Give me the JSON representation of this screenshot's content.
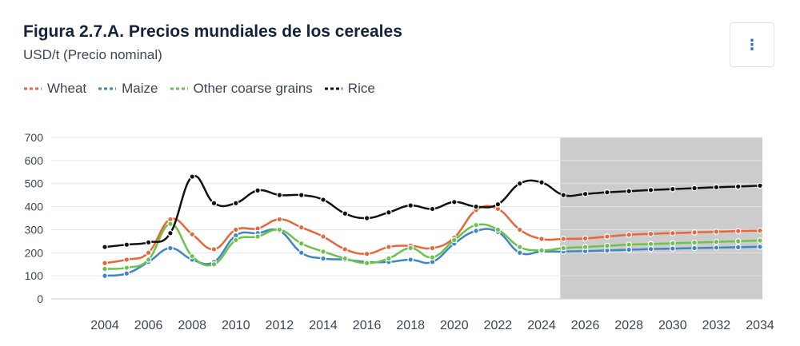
{
  "header": {
    "title": "Figura 2.7.A. Precios mundiales de los cereales",
    "subtitle": "USD/t (Precio nominal)",
    "menu_icon": "vertical-ellipsis-icon",
    "menu_glyph": "⋮"
  },
  "colors": {
    "wheat": "#e8673a",
    "maize": "#3d87c4",
    "other": "#6cc24a",
    "rice": "#111111",
    "projection_band": "#cccccc",
    "grid": "#e3e6ea"
  },
  "chart_data": {
    "type": "line",
    "x": [
      2004,
      2005,
      2006,
      2007,
      2008,
      2009,
      2010,
      2011,
      2012,
      2013,
      2014,
      2015,
      2016,
      2017,
      2018,
      2019,
      2020,
      2021,
      2022,
      2023,
      2024,
      2025,
      2026,
      2027,
      2028,
      2029,
      2030,
      2031,
      2032,
      2033,
      2034
    ],
    "series": [
      {
        "name": "Wheat",
        "color": "#e8673a",
        "values": [
          155,
          170,
          200,
          345,
          280,
          215,
          300,
          305,
          345,
          310,
          270,
          215,
          195,
          225,
          230,
          220,
          265,
          385,
          390,
          300,
          260,
          260,
          262,
          270,
          278,
          282,
          285,
          288,
          291,
          294,
          296
        ]
      },
      {
        "name": "Maize",
        "color": "#3d87c4",
        "values": [
          100,
          110,
          160,
          220,
          170,
          160,
          275,
          285,
          295,
          200,
          175,
          170,
          160,
          160,
          170,
          160,
          240,
          295,
          290,
          200,
          205,
          205,
          207,
          210,
          213,
          216,
          218,
          220,
          222,
          224,
          226
        ]
      },
      {
        "name": "Other coarse grains",
        "color": "#6cc24a",
        "values": [
          130,
          135,
          170,
          325,
          185,
          150,
          255,
          270,
          300,
          240,
          205,
          175,
          155,
          175,
          220,
          180,
          255,
          320,
          300,
          225,
          210,
          220,
          225,
          230,
          235,
          238,
          241,
          244,
          247,
          250,
          253
        ]
      },
      {
        "name": "Rice",
        "color": "#111111",
        "values": [
          225,
          235,
          245,
          285,
          530,
          415,
          415,
          470,
          450,
          450,
          430,
          370,
          350,
          375,
          405,
          390,
          420,
          400,
          410,
          500,
          505,
          450,
          455,
          462,
          467,
          472,
          476,
          480,
          484,
          487,
          491
        ]
      }
    ],
    "x_ticks": [
      2004,
      2006,
      2008,
      2010,
      2012,
      2014,
      2016,
      2018,
      2020,
      2022,
      2024,
      2026,
      2028,
      2030,
      2032,
      2034
    ],
    "y_ticks": [
      0,
      100,
      200,
      300,
      400,
      500,
      600,
      700
    ],
    "ylim": [
      0,
      700
    ],
    "xlim": [
      2004,
      2034
    ],
    "projection_start": 2025,
    "grid": true,
    "legend_position": "top-left",
    "xlabel": "",
    "ylabel": ""
  }
}
